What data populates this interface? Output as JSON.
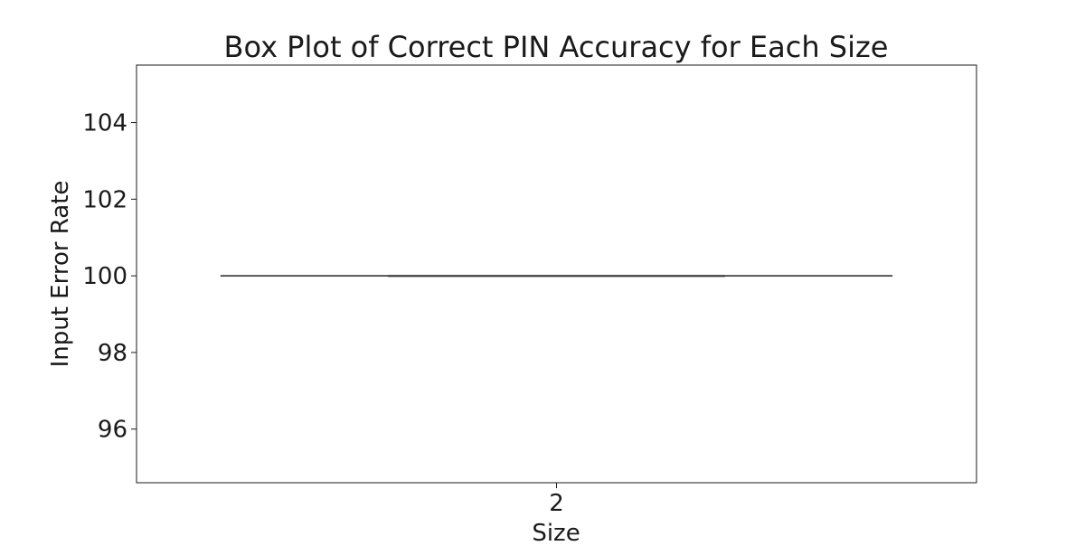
{
  "chart_data": {
    "type": "box",
    "title": "Box Plot of Correct PIN Accuracy for Each Size",
    "xlabel": "Size",
    "ylabel": "Input Error Rate",
    "categories": [
      "2"
    ],
    "boxes": [
      {
        "category": "2",
        "whisker_low": 100,
        "q1": 100,
        "median": 100,
        "q3": 100,
        "whisker_high": 100
      }
    ],
    "ylim": [
      94.6,
      105.5
    ],
    "yticks": [
      96,
      98,
      100,
      102,
      104
    ],
    "grid": false,
    "legend": "none",
    "colors": {
      "line": "#3d3d3d",
      "box_face": "#4c72b0",
      "axis": "#1a1a1a",
      "text": "#1a1a1a"
    }
  }
}
